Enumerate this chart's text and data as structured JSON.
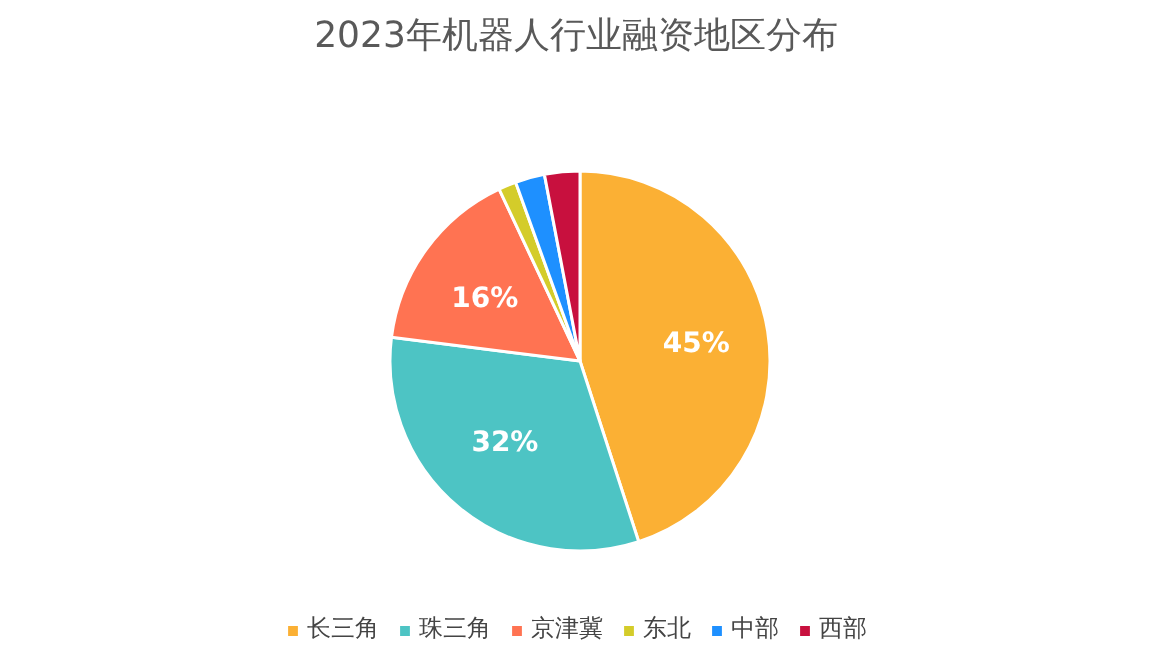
{
  "chart_data": {
    "type": "pie",
    "title": "2023年机器人行业融资地区分布",
    "categories": [
      "长三角",
      "珠三角",
      "京津冀",
      "东北",
      "中部",
      "西部"
    ],
    "values": [
      45,
      32,
      16,
      1.5,
      2.5,
      3
    ],
    "colors": [
      "#fbb034",
      "#4dc4c4",
      "#ff7352",
      "#d4cc2a",
      "#1e90ff",
      "#c8103e"
    ],
    "value_labels": [
      "45%",
      "32%",
      "16%",
      null,
      null,
      null
    ],
    "legend": "bottom"
  }
}
